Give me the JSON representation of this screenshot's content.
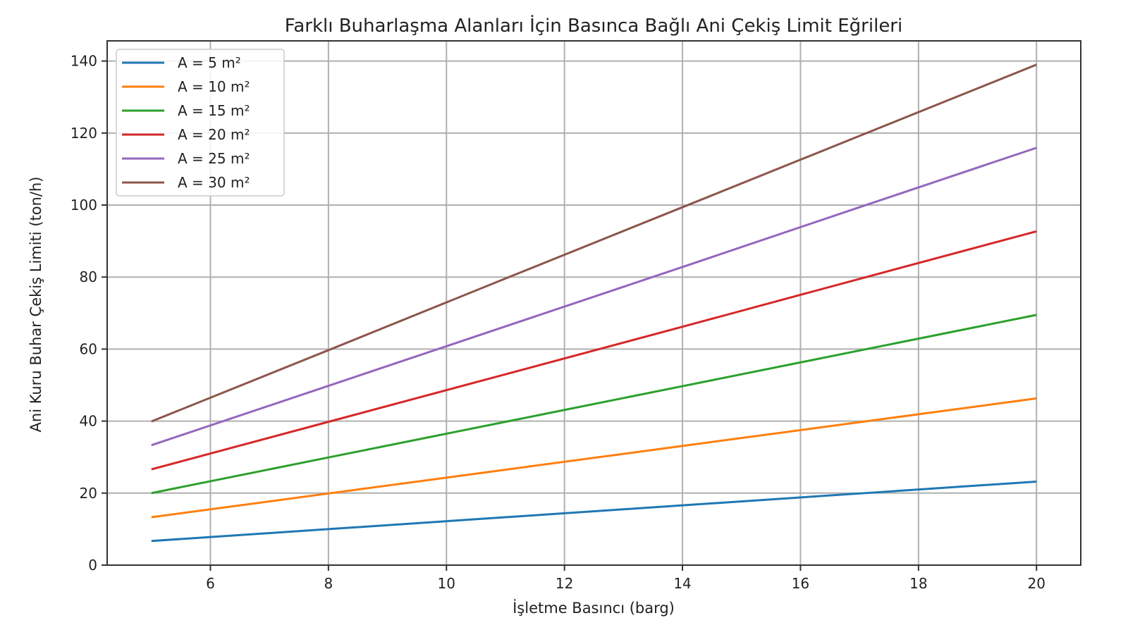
{
  "chart_data": {
    "type": "line",
    "title": "Farklı Buharlaşma Alanları İçin Basınca Bağlı Ani Çekiş Limit Eğrileri",
    "xlabel": "İşletme Basıncı (barg)",
    "ylabel": "Ani Kuru Buhar Çekiş Limiti (ton/h)",
    "xlim": [
      4.25,
      20.75
    ],
    "ylim": [
      0,
      145.6
    ],
    "xticks": [
      6,
      8,
      10,
      12,
      14,
      16,
      18,
      20
    ],
    "yticks": [
      0,
      20,
      40,
      60,
      80,
      100,
      120,
      140
    ],
    "grid": true,
    "legend_position": "top-left",
    "x": [
      5,
      8,
      11,
      14,
      17,
      20
    ],
    "series": [
      {
        "name": "A = 5 m²",
        "color": "#1f77b4",
        "values": [
          6.7,
          10.0,
          13.3,
          16.6,
          19.9,
          23.2
        ]
      },
      {
        "name": "A = 10 m²",
        "color": "#ff7f0e",
        "values": [
          13.3,
          19.9,
          26.5,
          33.1,
          39.7,
          46.3
        ]
      },
      {
        "name": "A = 15 m²",
        "color": "#2ca02c",
        "values": [
          20.0,
          29.9,
          39.8,
          49.7,
          59.6,
          69.5
        ]
      },
      {
        "name": "A = 20 m²",
        "color": "#d62728",
        "values": [
          26.6,
          39.8,
          53.0,
          66.2,
          79.5,
          92.7
        ]
      },
      {
        "name": "A = 25 m²",
        "color": "#9467bd",
        "values": [
          33.3,
          49.8,
          66.3,
          82.8,
          99.4,
          115.9
        ]
      },
      {
        "name": "A = 30 m²",
        "color": "#8c564b",
        "values": [
          39.9,
          59.7,
          79.6,
          99.4,
          119.2,
          139.0
        ]
      }
    ]
  }
}
